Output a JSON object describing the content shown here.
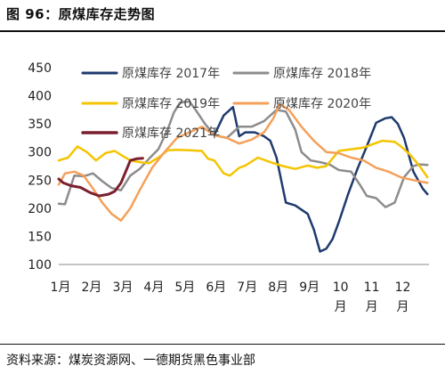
{
  "header": {
    "title": "图 96：原煤库存走势图"
  },
  "footer": {
    "source": "资料来源：煤炭资源网、一德期货黑色事业部"
  },
  "chart_data": {
    "type": "line",
    "title": "",
    "xlabel": "",
    "ylabel": "",
    "ylim": [
      100,
      450
    ],
    "yticks": [
      100,
      150,
      200,
      250,
      300,
      350,
      400,
      450
    ],
    "xlim": [
      1,
      12.9
    ],
    "xticks": [
      {
        "v": 1,
        "label": "1月"
      },
      {
        "v": 2,
        "label": "2月"
      },
      {
        "v": 3,
        "label": "3月"
      },
      {
        "v": 4,
        "label": "4月"
      },
      {
        "v": 5,
        "label": "5月"
      },
      {
        "v": 6,
        "label": "6月"
      },
      {
        "v": 7,
        "label": "7月"
      },
      {
        "v": 8,
        "label": "8月"
      },
      {
        "v": 9,
        "label": "9月"
      },
      {
        "v": 10,
        "label": "10月"
      },
      {
        "v": 11,
        "label": "11月"
      },
      {
        "v": 12,
        "label": "12月"
      }
    ],
    "grid": false,
    "legend_position": "top",
    "series": [
      {
        "name": "原煤库存 2017年",
        "color": "#1f3a6e",
        "width": 2.5,
        "points": [
          [
            6,
            330
          ],
          [
            6.3,
            365
          ],
          [
            6.6,
            380
          ],
          [
            6.8,
            328
          ],
          [
            7.0,
            335
          ],
          [
            7.3,
            335
          ],
          [
            7.6,
            328
          ],
          [
            7.8,
            320
          ],
          [
            8.0,
            290
          ],
          [
            8.3,
            210
          ],
          [
            8.6,
            205
          ],
          [
            9.0,
            190
          ],
          [
            9.2,
            162
          ],
          [
            9.4,
            123
          ],
          [
            9.6,
            128
          ],
          [
            9.8,
            145
          ],
          [
            10.0,
            175
          ],
          [
            10.3,
            225
          ],
          [
            10.6,
            270
          ],
          [
            10.9,
            310
          ],
          [
            11.2,
            352
          ],
          [
            11.5,
            360
          ],
          [
            11.7,
            362
          ],
          [
            11.9,
            350
          ],
          [
            12.1,
            325
          ],
          [
            12.4,
            265
          ],
          [
            12.7,
            235
          ],
          [
            12.85,
            225
          ]
        ]
      },
      {
        "name": "原煤库存 2018年",
        "color": "#8c8c8c",
        "width": 2.5,
        "points": [
          [
            1,
            208
          ],
          [
            1.2,
            207
          ],
          [
            1.5,
            258
          ],
          [
            1.8,
            257
          ],
          [
            2.1,
            262
          ],
          [
            2.4,
            248
          ],
          [
            2.7,
            236
          ],
          [
            3.0,
            232
          ],
          [
            3.3,
            258
          ],
          [
            3.6,
            270
          ],
          [
            3.9,
            288
          ],
          [
            4.2,
            305
          ],
          [
            4.5,
            340
          ],
          [
            4.7,
            370
          ],
          [
            4.9,
            388
          ],
          [
            5.2,
            390
          ],
          [
            5.4,
            375
          ],
          [
            5.7,
            350
          ],
          [
            6.0,
            330
          ],
          [
            6.4,
            325
          ],
          [
            6.8,
            345
          ],
          [
            7.2,
            345
          ],
          [
            7.6,
            355
          ],
          [
            8.0,
            375
          ],
          [
            8.3,
            372
          ],
          [
            8.6,
            340
          ],
          [
            8.8,
            300
          ],
          [
            9.1,
            285
          ],
          [
            9.4,
            282
          ],
          [
            9.7,
            278
          ],
          [
            10.0,
            268
          ],
          [
            10.4,
            265
          ],
          [
            10.7,
            240
          ],
          [
            10.9,
            222
          ],
          [
            11.2,
            218
          ],
          [
            11.5,
            202
          ],
          [
            11.8,
            210
          ],
          [
            12.1,
            255
          ],
          [
            12.4,
            275
          ],
          [
            12.6,
            278
          ],
          [
            12.85,
            277
          ]
        ]
      },
      {
        "name": "原煤库存 2019年",
        "color": "#f5c400",
        "width": 2.5,
        "points": [
          [
            1,
            285
          ],
          [
            1.3,
            290
          ],
          [
            1.6,
            310
          ],
          [
            1.9,
            300
          ],
          [
            2.2,
            285
          ],
          [
            2.5,
            298
          ],
          [
            2.8,
            302
          ],
          [
            3.0,
            295
          ],
          [
            3.3,
            285
          ],
          [
            3.6,
            282
          ],
          [
            3.9,
            280
          ],
          [
            4.2,
            290
          ],
          [
            4.5,
            303
          ],
          [
            4.8,
            304
          ],
          [
            5.2,
            303
          ],
          [
            5.6,
            302
          ],
          [
            5.8,
            288
          ],
          [
            6.0,
            285
          ],
          [
            6.3,
            262
          ],
          [
            6.5,
            258
          ],
          [
            6.8,
            272
          ],
          [
            7.0,
            276
          ],
          [
            7.4,
            290
          ],
          [
            7.8,
            282
          ],
          [
            8.2,
            275
          ],
          [
            8.6,
            270
          ],
          [
            9.0,
            276
          ],
          [
            9.3,
            272
          ],
          [
            9.6,
            275
          ],
          [
            10.0,
            302
          ],
          [
            10.4,
            305
          ],
          [
            10.8,
            308
          ],
          [
            11.0,
            312
          ],
          [
            11.4,
            320
          ],
          [
            11.8,
            318
          ],
          [
            12.0,
            310
          ],
          [
            12.3,
            295
          ],
          [
            12.6,
            275
          ],
          [
            12.85,
            255
          ]
        ]
      },
      {
        "name": "原煤库存 2020年",
        "color": "#f5a05a",
        "width": 2.5,
        "points": [
          [
            1,
            242
          ],
          [
            1.2,
            262
          ],
          [
            1.5,
            265
          ],
          [
            1.8,
            258
          ],
          [
            2.1,
            235
          ],
          [
            2.4,
            210
          ],
          [
            2.7,
            190
          ],
          [
            3.0,
            178
          ],
          [
            3.3,
            200
          ],
          [
            3.6,
            232
          ],
          [
            4.0,
            272
          ],
          [
            4.4,
            300
          ],
          [
            4.8,
            325
          ],
          [
            5.2,
            335
          ],
          [
            5.6,
            345
          ],
          [
            6.0,
            330
          ],
          [
            6.4,
            325
          ],
          [
            6.8,
            315
          ],
          [
            7.2,
            322
          ],
          [
            7.6,
            335
          ],
          [
            7.9,
            360
          ],
          [
            8.1,
            385
          ],
          [
            8.4,
            375
          ],
          [
            8.8,
            345
          ],
          [
            9.2,
            320
          ],
          [
            9.6,
            300
          ],
          [
            10.0,
            298
          ],
          [
            10.4,
            290
          ],
          [
            10.8,
            285
          ],
          [
            11.2,
            272
          ],
          [
            11.6,
            265
          ],
          [
            12.0,
            255
          ],
          [
            12.4,
            250
          ],
          [
            12.85,
            245
          ]
        ]
      },
      {
        "name": "原煤库存 2021年",
        "color": "#7b1f2e",
        "width": 3,
        "points": [
          [
            1,
            252
          ],
          [
            1.15,
            245
          ],
          [
            1.4,
            240
          ],
          [
            1.7,
            237
          ],
          [
            2.0,
            228
          ],
          [
            2.3,
            222
          ],
          [
            2.6,
            225
          ],
          [
            2.8,
            230
          ],
          [
            3.0,
            245
          ],
          [
            3.15,
            265
          ],
          [
            3.3,
            285
          ],
          [
            3.5,
            288
          ],
          [
            3.7,
            289
          ]
        ]
      }
    ]
  }
}
